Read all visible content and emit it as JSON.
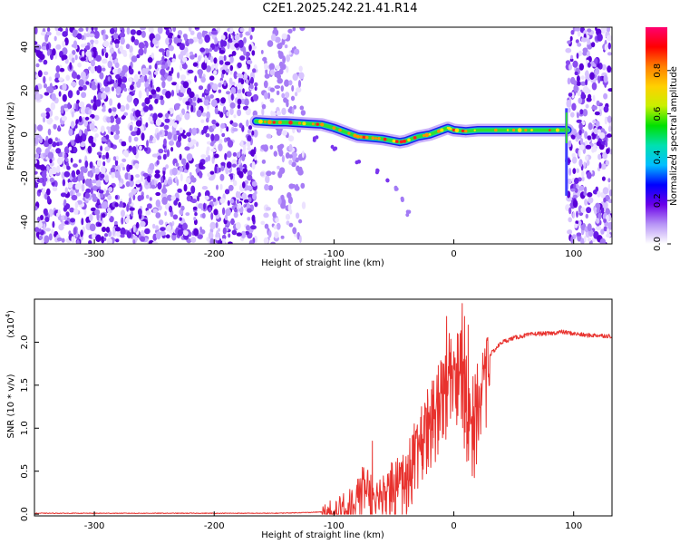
{
  "title": "C2E1.2025.242.21.41.R14",
  "chart_data": [
    {
      "type": "heatmap",
      "xlabel": "Height of straight line (km)",
      "ylabel": "Frequency (Hz)",
      "xlim": [
        -350,
        132
      ],
      "ylim": [
        -50,
        49
      ],
      "xticks": [
        -300,
        -200,
        -100,
        0,
        100
      ],
      "yticks": [
        -40,
        -20,
        0,
        20,
        40
      ],
      "colorbar": {
        "label": "Normalized spectral amplitude",
        "range": [
          0,
          1
        ],
        "ticks": [
          "0.0",
          "0.2",
          "0.4",
          "0.6",
          "0.8"
        ],
        "stops": [
          "#ffffff",
          "#b794f6",
          "#6a00e8",
          "#0000ff",
          "#00bfff",
          "#00e0b0",
          "#00e000",
          "#c8f000",
          "#ffd000",
          "#ff8000",
          "#ff0000",
          "#ff0070"
        ]
      },
      "noise_regions": [
        [
          -350,
          -165
        ],
        [
          -160,
          -125
        ],
        [
          95,
          132
        ]
      ],
      "signal_track": {
        "x": [
          -165,
          -150,
          -140,
          -125,
          -110,
          -100,
          -90,
          -80,
          -70,
          -60,
          -50,
          -45,
          -40,
          -30,
          -20,
          -10,
          -5,
          0,
          10,
          20,
          40,
          60,
          80,
          93,
          95
        ],
        "y": [
          6,
          5.5,
          5.5,
          5,
          4.5,
          3,
          1,
          -1,
          -1.5,
          -2,
          -3,
          -3.5,
          -3,
          -1,
          0,
          2,
          3,
          2,
          1.5,
          2,
          2,
          2,
          2,
          2,
          2
        ]
      },
      "secondary_track": {
        "x": [
          -115,
          -100,
          -80,
          -65,
          -55,
          -47,
          -42,
          -38
        ],
        "y": [
          -2,
          -6,
          -12,
          -17,
          -21,
          -25,
          -30,
          -36
        ]
      }
    },
    {
      "type": "line",
      "xlabel": "Height of straight line (km)",
      "ylabel": "SNR (10 * v/v)",
      "exponent_label": "(x10",
      "exponent_power": "4",
      "exponent_close": ")",
      "xlim": [
        -350,
        132
      ],
      "ylim": [
        -0.02,
        2.5
      ],
      "xticks": [
        -300,
        -200,
        -100,
        0,
        100
      ],
      "yticks": [
        "0.0",
        "0.5",
        "1.0",
        "1.5",
        "2.0"
      ],
      "line_color": "#e8322e",
      "series": [
        {
          "x": [
            -350,
            -300,
            -250,
            -200,
            -150,
            -120,
            -105,
            -100,
            -95,
            -90,
            -85,
            -80,
            -75,
            -70,
            -65,
            -60,
            -55,
            -50,
            -45,
            -40,
            -35,
            -30,
            -25,
            -20,
            -15,
            -10,
            -5,
            0,
            5,
            10,
            15,
            20,
            25,
            30,
            40,
            50,
            60,
            70,
            80,
            90,
            100,
            110,
            120,
            132
          ],
          "y": [
            0.01,
            0.01,
            0.01,
            0.01,
            0.01,
            0.02,
            0.03,
            0.05,
            0.08,
            0.12,
            0.18,
            0.25,
            0.45,
            0.35,
            0.2,
            0.3,
            0.4,
            0.35,
            0.45,
            0.55,
            0.7,
            0.85,
            1.0,
            1.2,
            1.4,
            1.5,
            1.75,
            1.85,
            1.95,
            1.5,
            1.2,
            1.45,
            1.75,
            1.85,
            2.0,
            2.05,
            2.08,
            2.1,
            2.1,
            2.12,
            2.1,
            2.08,
            2.08,
            2.07
          ]
        }
      ],
      "spikes": {
        "x": [
          -68,
          -52,
          -47,
          -43,
          -33,
          -27,
          -22,
          -18,
          -13,
          -9,
          -6,
          3,
          7,
          9,
          12,
          16
        ],
        "y": [
          0.85,
          0.6,
          0.65,
          0.5,
          1.05,
          1.25,
          1.45,
          1.55,
          1.65,
          1.75,
          2.3,
          2.1,
          2.45,
          2.3,
          2.2,
          1.6
        ]
      }
    }
  ]
}
